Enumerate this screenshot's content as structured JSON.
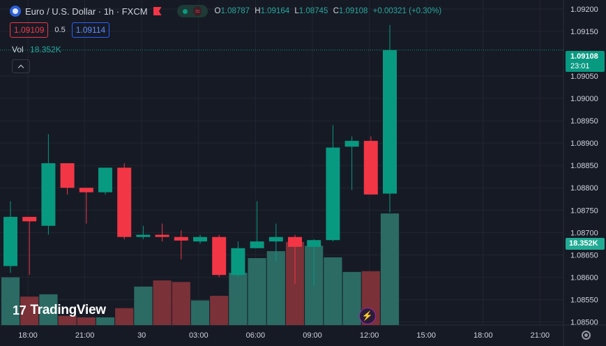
{
  "header": {
    "symbol": "Euro / U.S. Dollar · 1h · FXCM",
    "ohlc": [
      {
        "k": "O",
        "v": "1.08787"
      },
      {
        "k": "H",
        "v": "1.09164"
      },
      {
        "k": "L",
        "v": "1.08745"
      },
      {
        "k": "C",
        "v": "1.09108"
      }
    ],
    "change": "+0.00321 (+0.30%)",
    "wave_glyph": "≈"
  },
  "bidask": {
    "bid": "1.09109",
    "spread": "0.5",
    "ask": "1.09114"
  },
  "volume": {
    "label": "Vol",
    "value": "18.352K"
  },
  "last_price": {
    "price": "1.09108",
    "countdown": "23:01"
  },
  "logo": {
    "mark": "17",
    "text": "TradingView"
  },
  "colors": {
    "up": "#089981",
    "down": "#f23645",
    "vol_up": "#2b6b64",
    "vol_down": "#7a3137",
    "bg": "#161a25",
    "grid": "#222631",
    "axis_text": "#d1d4dc"
  },
  "icons": {
    "settings": "gear-icon",
    "collapse": "chevron-up-icon",
    "bolt": "lightning-icon",
    "flag": "currency-flag-icon"
  },
  "chart_data": {
    "type": "candlestick",
    "ylim": [
      1.08493,
      1.0922
    ],
    "y_ticks": [
      "1.09200",
      "1.09150",
      "1.09050",
      "1.09000",
      "1.08950",
      "1.08900",
      "1.08850",
      "1.08800",
      "1.08750",
      "1.08700",
      "1.08650",
      "1.08600",
      "1.08550",
      "1.08500"
    ],
    "x_ticks": [
      "18:00",
      "21:00",
      "30",
      "03:00",
      "06:00",
      "09:00",
      "12:00",
      "15:00",
      "18:00",
      "21:00"
    ],
    "candles": [
      {
        "o": 1.08625,
        "h": 1.0877,
        "l": 1.0861,
        "c": 1.08735,
        "v": 0.62
      },
      {
        "o": 1.08735,
        "h": 1.08735,
        "l": 1.08605,
        "c": 1.08725,
        "v": 0.37
      },
      {
        "o": 1.08715,
        "h": 1.0892,
        "l": 1.08695,
        "c": 1.08855,
        "v": 0.4
      },
      {
        "o": 1.08855,
        "h": 1.08855,
        "l": 1.08785,
        "c": 1.088,
        "v": 0.12
      },
      {
        "o": 1.088,
        "h": 1.088,
        "l": 1.0872,
        "c": 1.0879,
        "v": 0.1
      },
      {
        "o": 1.0879,
        "h": 1.08845,
        "l": 1.08785,
        "c": 1.08845,
        "v": 0.1
      },
      {
        "o": 1.08845,
        "h": 1.08855,
        "l": 1.08685,
        "c": 1.0869,
        "v": 0.22
      },
      {
        "o": 1.0869,
        "h": 1.08715,
        "l": 1.08685,
        "c": 1.08695,
        "v": 0.5
      },
      {
        "o": 1.08695,
        "h": 1.0872,
        "l": 1.0868,
        "c": 1.0869,
        "v": 0.58
      },
      {
        "o": 1.0869,
        "h": 1.08705,
        "l": 1.0864,
        "c": 1.08682,
        "v": 0.56
      },
      {
        "o": 1.0868,
        "h": 1.08695,
        "l": 1.08675,
        "c": 1.0869,
        "v": 0.32
      },
      {
        "o": 1.0869,
        "h": 1.08695,
        "l": 1.086,
        "c": 1.08605,
        "v": 0.38
      },
      {
        "o": 1.08605,
        "h": 1.0868,
        "l": 1.086,
        "c": 1.08665,
        "v": 0.68
      },
      {
        "o": 1.08665,
        "h": 1.0877,
        "l": 1.08665,
        "c": 1.0868,
        "v": 0.87
      },
      {
        "o": 1.0868,
        "h": 1.0872,
        "l": 1.08635,
        "c": 1.0869,
        "v": 0.96
      },
      {
        "o": 1.0869,
        "h": 1.08695,
        "l": 1.08585,
        "c": 1.08668,
        "v": 1.08
      },
      {
        "o": 1.08668,
        "h": 1.08685,
        "l": 1.0858,
        "c": 1.08683,
        "v": 1.03
      },
      {
        "o": 1.08683,
        "h": 1.0894,
        "l": 1.0868,
        "c": 1.0889,
        "v": 0.88
      },
      {
        "o": 1.08892,
        "h": 1.08915,
        "l": 1.08795,
        "c": 1.08905,
        "v": 0.69
      },
      {
        "o": 1.08905,
        "h": 1.08915,
        "l": 1.08785,
        "c": 1.08785,
        "v": 0.7
      },
      {
        "o": 1.08787,
        "h": 1.09164,
        "l": 1.08745,
        "c": 1.09108,
        "v": 1.45
      }
    ]
  }
}
